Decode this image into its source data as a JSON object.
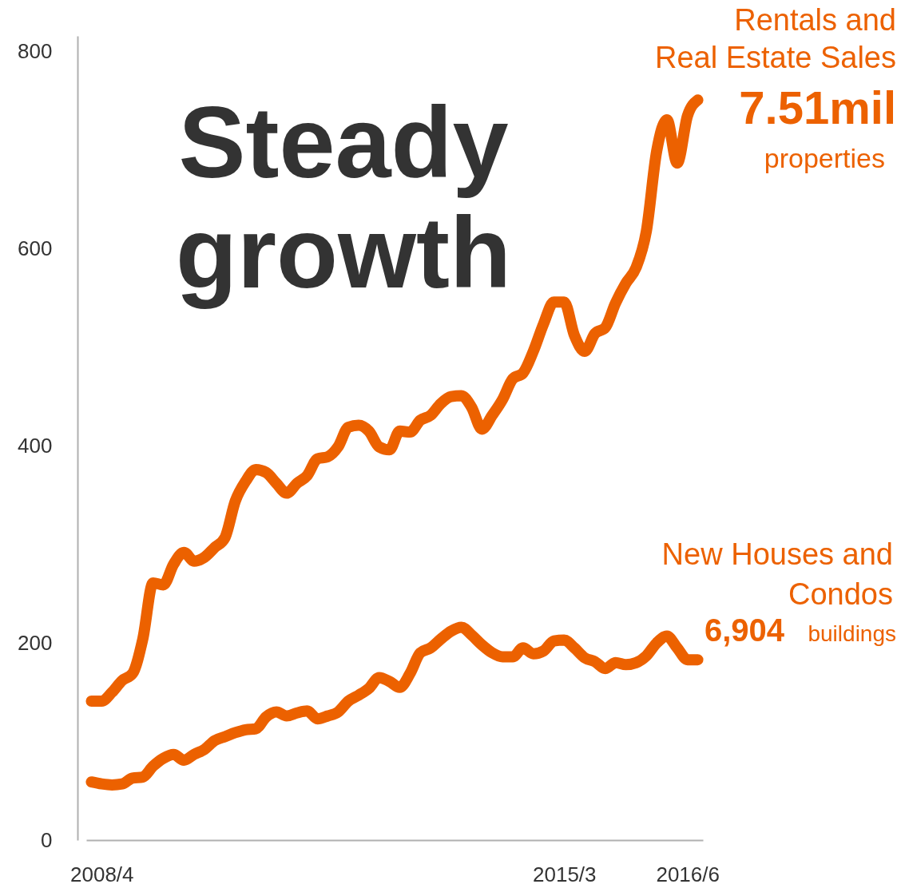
{
  "chart_data": {
    "type": "line",
    "title": "Steady growth",
    "categories": [
      null,
      "2008/4",
      null,
      null,
      null,
      null,
      null,
      null,
      null,
      null,
      null,
      null,
      null,
      null,
      null,
      null,
      null,
      null,
      null,
      null,
      null,
      null,
      null,
      null,
      null,
      null,
      null,
      null,
      null,
      null,
      null,
      null,
      null,
      null,
      null,
      null,
      null,
      null,
      null,
      null,
      null,
      null,
      null,
      null,
      null,
      null,
      "2015/3",
      null,
      null,
      null,
      null,
      null,
      null,
      null,
      null,
      null,
      null,
      null,
      "2016/6",
      null
    ],
    "series": [
      {
        "name": "Rentals and Real Estate Sales",
        "color": "#ec6100",
        "values": [
          141,
          141,
          150,
          162,
          169,
          204,
          261,
          259,
          280,
          292,
          283,
          287,
          297,
          307,
          344,
          364,
          376,
          373,
          362,
          352,
          362,
          370,
          387,
          389,
          399,
          419,
          421,
          415,
          399,
          396,
          415,
          414,
          426,
          431,
          443,
          450,
          451,
          439,
          417,
          431,
          447,
          468,
          474,
          496,
          524,
          546,
          546,
          512,
          496,
          514,
          520,
          545,
          565,
          581,
          618,
          699,
          731,
          687,
          735,
          751
        ]
      },
      {
        "name": "New Houses and Condos",
        "color": "#ec6100",
        "values": [
          59,
          57,
          56,
          57,
          63,
          64,
          75,
          83,
          87,
          81,
          87,
          92,
          101,
          105,
          109,
          112,
          113,
          125,
          130,
          126,
          129,
          131,
          123,
          126,
          130,
          141,
          147,
          154,
          165,
          161,
          155,
          169,
          190,
          195,
          204,
          212,
          216,
          208,
          198,
          190,
          186,
          186,
          195,
          189,
          192,
          202,
          203,
          195,
          185,
          181,
          174,
          180,
          178,
          180,
          187,
          200,
          207,
          195,
          183,
          183
        ]
      }
    ],
    "annotations": [
      "7.51mil properties",
      "6,904 buildings"
    ],
    "ylim": [
      0,
      816
    ],
    "yticks": [
      0,
      200,
      400,
      600,
      800
    ]
  }
}
